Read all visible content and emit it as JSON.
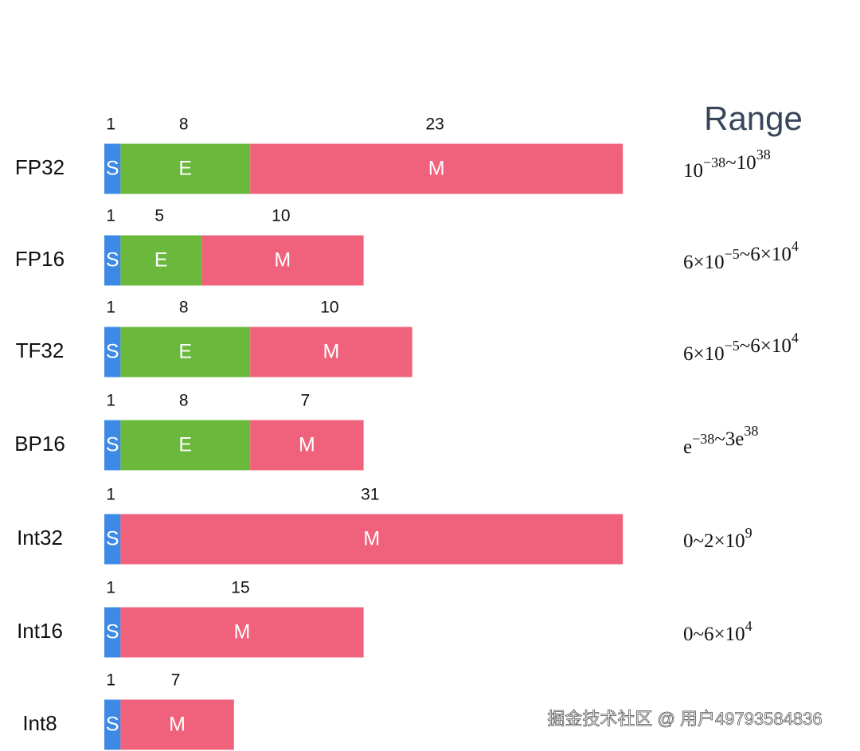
{
  "title": "Range",
  "formats": [
    {
      "name": "FP32",
      "segments": [
        {
          "label": "S",
          "bits": 1
        },
        {
          "label": "E",
          "bits": 8
        },
        {
          "label": "M",
          "bits": 23
        }
      ],
      "range": [
        [
          "10",
          "−38"
        ],
        [
          "~10",
          "38"
        ]
      ]
    },
    {
      "name": "FP16",
      "segments": [
        {
          "label": "S",
          "bits": 1
        },
        {
          "label": "E",
          "bits": 5
        },
        {
          "label": "M",
          "bits": 10
        }
      ],
      "range": [
        [
          "6×10",
          "−5"
        ],
        [
          "~6×10",
          "4"
        ]
      ]
    },
    {
      "name": "TF32",
      "segments": [
        {
          "label": "S",
          "bits": 1
        },
        {
          "label": "E",
          "bits": 8
        },
        {
          "label": "M",
          "bits": 10
        }
      ],
      "range": [
        [
          "6×10",
          "−5"
        ],
        [
          "~6×10",
          "4"
        ]
      ]
    },
    {
      "name": "BP16",
      "segments": [
        {
          "label": "S",
          "bits": 1
        },
        {
          "label": "E",
          "bits": 8
        },
        {
          "label": "M",
          "bits": 7
        }
      ],
      "range": [
        [
          "e",
          "−38"
        ],
        [
          "~3e",
          "38"
        ]
      ]
    },
    {
      "name": "Int32",
      "segments": [
        {
          "label": "S",
          "bits": 1
        },
        {
          "label": "M",
          "bits": 31
        }
      ],
      "range": [
        [
          "0~2×10",
          "9"
        ]
      ]
    },
    {
      "name": "Int16",
      "segments": [
        {
          "label": "S",
          "bits": 1
        },
        {
          "label": "M",
          "bits": 15
        }
      ],
      "range": [
        [
          "0~6×10",
          "4"
        ]
      ]
    },
    {
      "name": "Int8",
      "segments": [
        {
          "label": "S",
          "bits": 1
        },
        {
          "label": "M",
          "bits": 7
        }
      ],
      "range": []
    }
  ],
  "watermark": "掘金技术社区 @ 用户49793584836"
}
